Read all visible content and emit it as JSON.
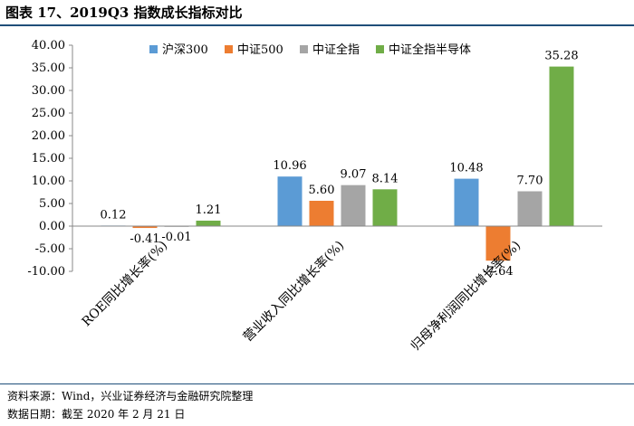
{
  "header": {
    "title": "图表 17、2019Q3 指数成长指标对比"
  },
  "footer": {
    "source": "资料来源：Wind，兴业证券经济与金融研究院整理",
    "date": "数据日期：截至 2020 年 2 月 21 日"
  },
  "colors": {
    "rule": "#1f4e79"
  },
  "chart_data": {
    "type": "bar",
    "categories": [
      "ROE同比增长率(%)",
      "营业收入同比增长率(%)",
      "归母净利润同比增长率(%)"
    ],
    "series": [
      {
        "name": "沪深300",
        "color": "#5b9bd5",
        "values": [
          0.12,
          10.96,
          10.48
        ],
        "labels": [
          "0.12",
          "10.96",
          "10.48"
        ]
      },
      {
        "name": "中证500",
        "color": "#ed7d31",
        "values": [
          -0.41,
          5.6,
          -7.64
        ],
        "labels": [
          "-0.41",
          "5.60",
          "-7.64"
        ]
      },
      {
        "name": "中证全指",
        "color": "#a5a5a5",
        "values": [
          -0.01,
          9.07,
          7.7
        ],
        "labels": [
          "-0.01",
          "9.07",
          "7.70"
        ]
      },
      {
        "name": "中证全指半导体",
        "color": "#70ad47",
        "values": [
          1.21,
          8.14,
          35.28
        ],
        "labels": [
          "1.21",
          "8.14",
          "35.28"
        ]
      }
    ],
    "yticks": [
      "40.00",
      "35.00",
      "30.00",
      "25.00",
      "20.00",
      "15.00",
      "10.00",
      "5.00",
      "0.00",
      "-5.00",
      "-10.00"
    ],
    "ylim": [
      -10,
      40
    ],
    "grid": false,
    "legend": "top"
  }
}
